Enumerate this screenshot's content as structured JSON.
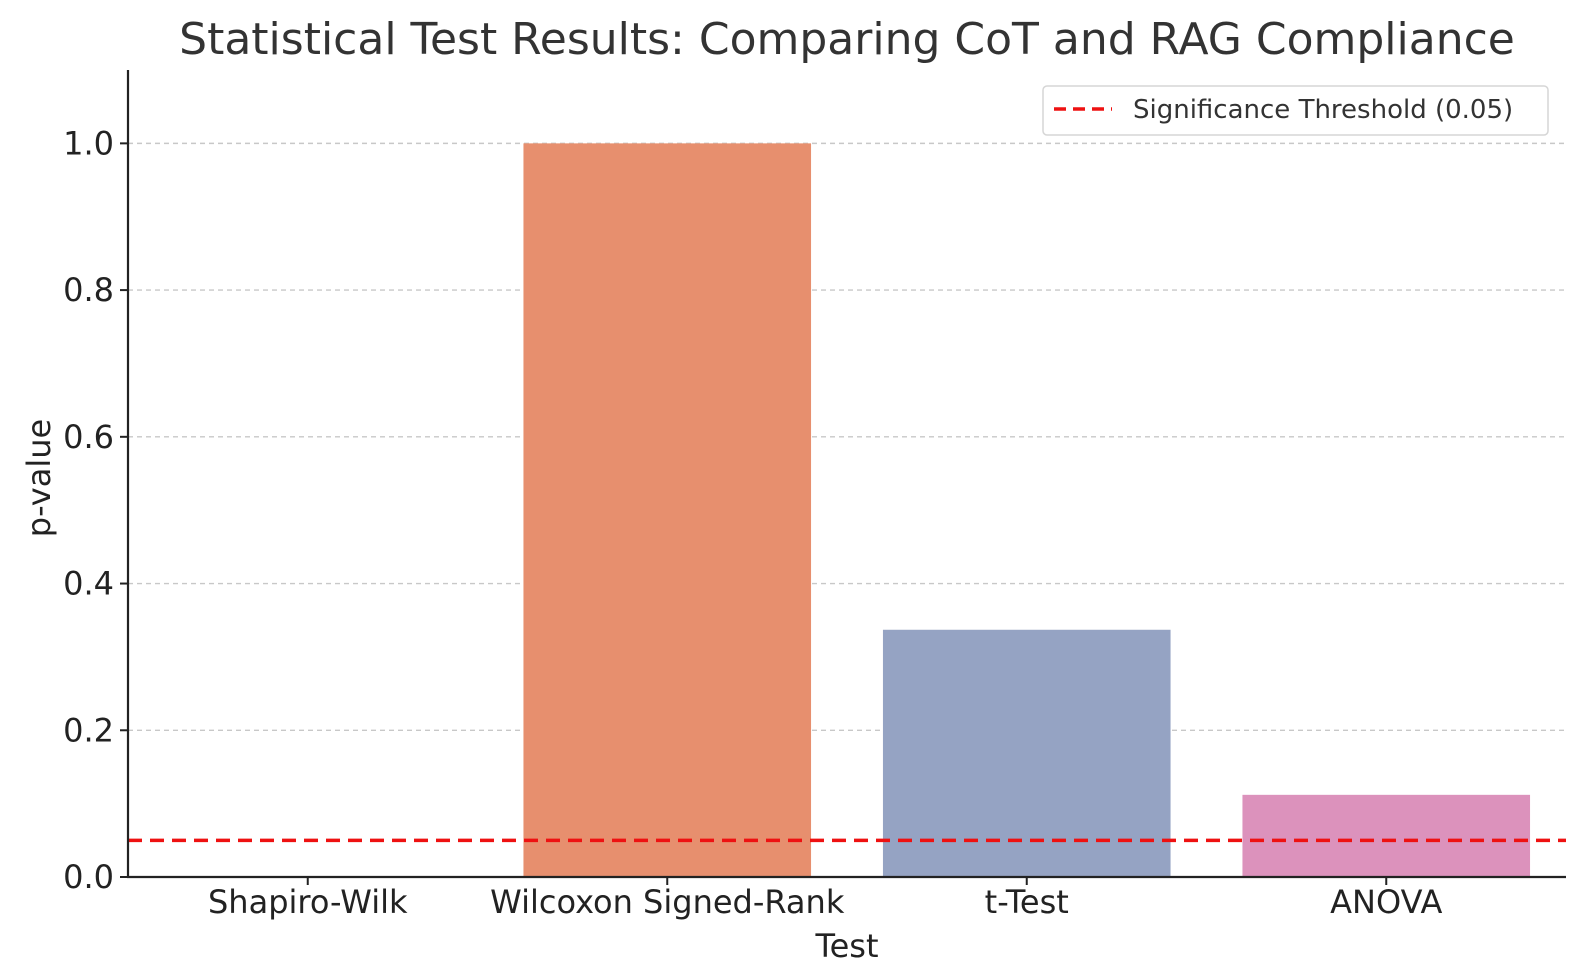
{
  "chart_data": {
    "type": "bar",
    "title": "Statistical Test Results: Comparing CoT and RAG Compliance",
    "xlabel": "Test",
    "ylabel": "p-value",
    "categories": [
      "Shapiro-Wilk",
      "Wilcoxon Signed-Rank",
      "t-Test",
      "ANOVA"
    ],
    "values": [
      0.0,
      1.0,
      0.337,
      0.112
    ],
    "colors": [
      "#66c2a5",
      "#e78f6e",
      "#95a3c3",
      "#dc92bc"
    ],
    "ylim": [
      0,
      1.1
    ],
    "yticks": [
      0.0,
      0.2,
      0.4,
      0.6,
      0.8,
      1.0
    ],
    "ytick_labels": [
      "0.0",
      "0.2",
      "0.4",
      "0.6",
      "0.8",
      "1.0"
    ],
    "grid": "y-axis dashed",
    "threshold": {
      "value": 0.05,
      "label": "Significance Threshold (0.05)",
      "color": "#ee1111",
      "style": "dashed"
    },
    "legend_position": "top-right"
  }
}
